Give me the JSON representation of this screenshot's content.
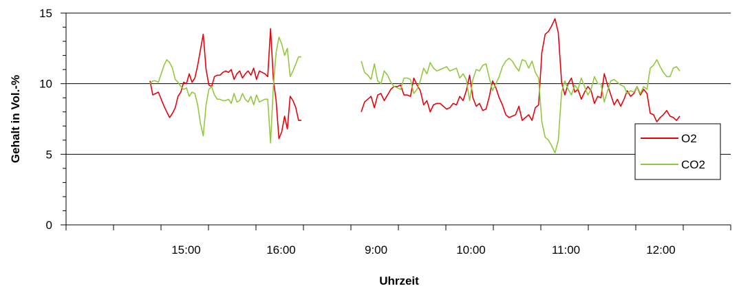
{
  "chart_data": {
    "type": "line",
    "title": "",
    "xlabel": "Uhrzeit",
    "ylabel": "Gehalt in Vol.-%",
    "ylim": [
      0,
      15
    ],
    "y_ticks": [
      "0",
      "5",
      "10",
      "15"
    ],
    "x_tick_labels": [
      "15:00",
      "16:00",
      "9:00",
      "10:00",
      "11:00",
      "12:00"
    ],
    "grid": "horizontal major gridlines at 5, 10, 15",
    "legend_position": "right",
    "segments_note": "two measurement periods separated by a gap between approx. 16:30 and 9:00",
    "series": [
      {
        "name": "O2",
        "color": "#e8000b",
        "segments": [
          [
            10.2,
            9.2,
            9.3,
            9.4,
            8.9,
            8.4,
            8.0,
            7.6,
            7.9,
            8.3,
            9.1,
            9.4,
            10.1,
            10.0,
            10.7,
            10.1,
            10.4,
            11.3,
            12.4,
            13.5,
            11.0,
            9.9,
            9.8,
            10.5,
            10.6,
            10.6,
            10.8,
            10.9,
            10.8,
            11.0,
            10.3,
            10.7,
            10.9,
            10.4,
            10.7,
            10.9,
            10.6,
            11.1,
            10.3,
            10.9,
            10.8,
            10.7,
            10.5,
            13.9,
            10.3,
            8.8,
            6.1,
            6.6,
            7.7,
            6.8,
            9.1,
            8.8,
            8.3,
            7.4,
            7.4
          ],
          [
            8.0,
            8.7,
            8.9,
            9.1,
            8.3,
            9.2,
            9.3,
            8.8,
            9.2,
            9.6,
            9.8,
            9.8,
            9.9,
            9.2,
            9.2,
            9.1,
            10.4,
            9.9,
            9.5,
            8.5,
            8.8,
            8.0,
            8.5,
            8.6,
            8.6,
            8.4,
            8.2,
            8.3,
            8.6,
            8.5,
            9.1,
            8.8,
            9.5,
            10.6,
            9.0,
            8.4,
            8.6,
            8.1,
            8.2,
            9.1,
            10.2,
            9.7,
            9.0,
            8.5,
            7.8,
            7.6,
            7.7,
            7.8,
            8.4,
            7.4,
            7.6,
            7.8,
            7.4,
            8.3,
            8.5,
            12.2,
            13.5,
            13.7,
            14.1,
            14.6,
            13.6,
            10.1,
            9.2,
            10.0,
            10.4,
            9.4,
            9.6,
            8.9,
            9.4,
            9.8,
            9.5,
            8.6,
            9.1,
            9.0,
            10.7,
            9.9,
            9.2,
            8.5,
            8.9,
            8.4,
            8.9,
            9.5,
            9.1,
            9.3,
            9.8,
            9.2,
            9.6,
            9.3,
            7.9,
            7.8,
            7.3,
            7.6,
            7.8,
            8.1,
            7.7,
            7.6,
            7.4,
            7.7
          ]
        ]
      },
      {
        "name": "CO2",
        "color": "#92c83e",
        "segments": [
          [
            10.0,
            10.2,
            10.2,
            10.1,
            10.7,
            11.3,
            11.7,
            11.5,
            11.1,
            10.3,
            10.1,
            9.8,
            9.6,
            9.7,
            9.1,
            9.4,
            9.3,
            8.5,
            7.2,
            6.3,
            8.5,
            9.6,
            9.8,
            9.2,
            8.9,
            8.9,
            8.8,
            8.8,
            8.9,
            8.6,
            9.3,
            8.7,
            8.8,
            9.3,
            8.9,
            8.7,
            9.1,
            8.5,
            9.2,
            8.7,
            8.8,
            8.9,
            8.9,
            5.8,
            9.8,
            12.2,
            13.3,
            12.8,
            12.0,
            12.5,
            10.5,
            10.9,
            11.4,
            11.9,
            11.9
          ],
          [
            11.6,
            10.8,
            10.6,
            10.3,
            11.4,
            10.2,
            10.0,
            10.9,
            10.6,
            10.1,
            9.8,
            9.7,
            9.6,
            10.4,
            10.4,
            10.3,
            9.3,
            9.6,
            10.2,
            11.1,
            10.7,
            11.5,
            11.1,
            10.9,
            11.0,
            11.1,
            11.2,
            10.9,
            11.0,
            11.1,
            10.4,
            10.7,
            10.3,
            8.8,
            10.3,
            11.0,
            10.9,
            11.3,
            11.4,
            10.4,
            9.5,
            10.0,
            10.5,
            11.2,
            11.6,
            11.8,
            11.6,
            11.2,
            10.9,
            11.7,
            11.6,
            11.1,
            11.6,
            10.8,
            10.4,
            7.3,
            6.2,
            6.0,
            5.6,
            5.1,
            6.0,
            9.4,
            10.2,
            9.6,
            9.2,
            9.9,
            9.6,
            10.4,
            9.8,
            9.2,
            9.6,
            10.5,
            10.0,
            10.0,
            8.7,
            9.5,
            10.2,
            10.3,
            10.1,
            9.9,
            9.8,
            9.3,
            9.5,
            9.4,
            9.8,
            9.3,
            9.8,
            9.6,
            11.1,
            11.3,
            11.7,
            11.2,
            10.8,
            10.5,
            10.5,
            11.1,
            11.2,
            10.9
          ]
        ]
      }
    ]
  }
}
